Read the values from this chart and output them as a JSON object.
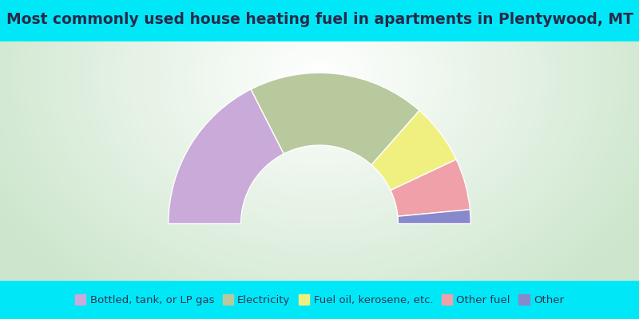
{
  "title": "Most commonly used house heating fuel in apartments in Plentywood, MT",
  "segments": [
    {
      "label": "Bottled, tank, or LP gas",
      "value": 35.0,
      "color": "#c9aad8"
    },
    {
      "label": "Electricity",
      "value": 38.0,
      "color": "#b8c99e"
    },
    {
      "label": "Fuel oil, kerosene, etc.",
      "value": 13.0,
      "color": "#f0f080"
    },
    {
      "label": "Other fuel",
      "value": 11.0,
      "color": "#f0a0a8"
    },
    {
      "label": "Other",
      "value": 3.0,
      "color": "#8888cc"
    }
  ],
  "background_color": "#00e8f8",
  "title_color": "#2a2a4a",
  "title_fontsize": 13.5,
  "legend_fontsize": 9.5,
  "outer_r": 1.0,
  "inner_r": 0.52,
  "gradient_colors": [
    "#f0f8f0",
    "#c8dfc0"
  ],
  "legend_label_color": "#333355"
}
